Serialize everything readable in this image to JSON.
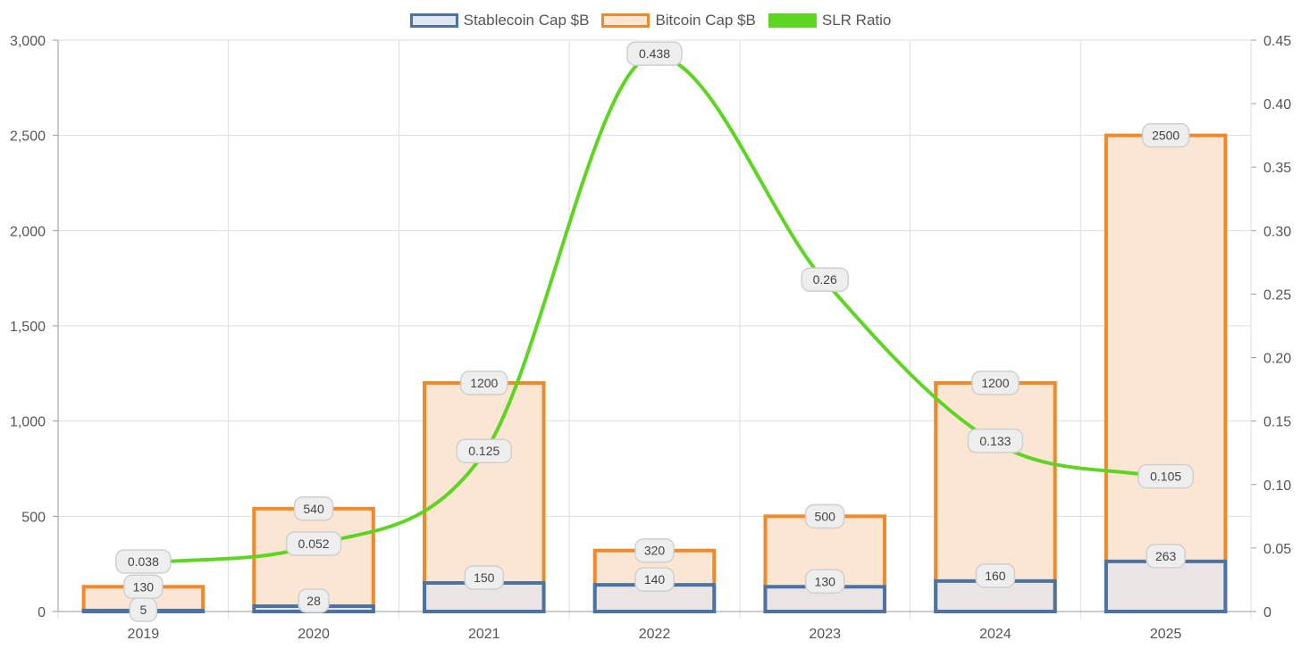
{
  "chart_data": {
    "type": "bar",
    "categories": [
      "2019",
      "2020",
      "2021",
      "2022",
      "2023",
      "2024",
      "2025"
    ],
    "series": [
      {
        "name": "Stablecoin Cap $B",
        "kind": "bar",
        "axis": "left",
        "values": [
          5,
          28,
          150,
          140,
          130,
          160,
          263
        ],
        "labels": [
          "5",
          "28",
          "150",
          "140",
          "130",
          "160",
          "263"
        ],
        "color": "#4a73a4",
        "fill": "#dde6f2"
      },
      {
        "name": "Bitcoin Cap $B",
        "kind": "bar",
        "axis": "left",
        "values": [
          130,
          540,
          1200,
          320,
          500,
          1200,
          2500
        ],
        "labels": [
          "130",
          "540",
          "1200",
          "320",
          "500",
          "1200",
          "2500"
        ],
        "color": "#f0892a",
        "fill": "#fbe5d3"
      },
      {
        "name": "SLR Ratio",
        "kind": "line",
        "axis": "right",
        "values": [
          0.038,
          0.052,
          0.125,
          0.438,
          0.26,
          0.133,
          0.105
        ],
        "labels": [
          "0.038",
          "0.052",
          "0.125",
          "0.438",
          "0.26",
          "0.133",
          "0.105"
        ],
        "color": "#5dd522"
      }
    ],
    "y_left": {
      "min": 0,
      "max": 3000,
      "ticks": [
        0,
        500,
        1000,
        1500,
        2000,
        2500,
        3000
      ],
      "tick_labels": [
        "0",
        "500",
        "1,000",
        "1,500",
        "2,000",
        "2,500",
        "3,000"
      ]
    },
    "y_right": {
      "min": 0,
      "max": 0.45,
      "ticks": [
        0,
        0.05,
        0.1,
        0.15,
        0.2,
        0.25,
        0.3,
        0.35,
        0.4,
        0.45
      ],
      "tick_labels": [
        "0",
        "0.05",
        "0.10",
        "0.15",
        "0.20",
        "0.25",
        "0.30",
        "0.35",
        "0.40",
        "0.45"
      ]
    },
    "grid": true,
    "legend_position": "top-center",
    "title": "",
    "xlabel": "",
    "ylabel": ""
  }
}
